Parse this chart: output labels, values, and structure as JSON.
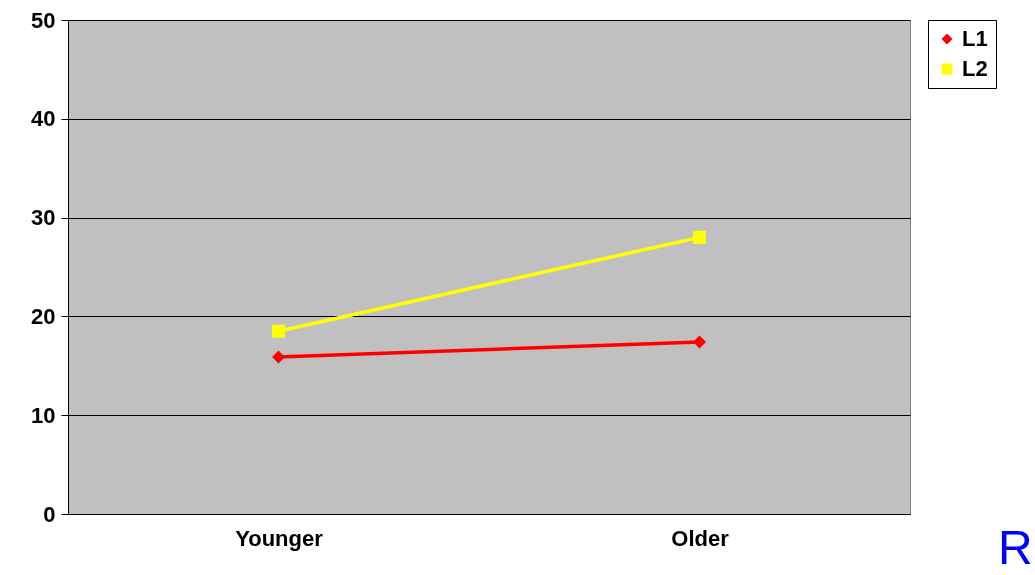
{
  "chart_data": {
    "type": "line",
    "categories": [
      "Younger",
      "Older"
    ],
    "series": [
      {
        "name": "L1",
        "color": "#ff0000",
        "marker": "diamond",
        "values": [
          15.9,
          17.4
        ]
      },
      {
        "name": "L2",
        "color": "#ffff00",
        "marker": "square",
        "values": [
          18.5,
          28.0
        ]
      }
    ],
    "ylim": [
      0,
      50
    ],
    "yticks": [
      0,
      10,
      20,
      30,
      40,
      50
    ],
    "grid": "y",
    "legend": "right",
    "line_style": "solid",
    "annotations": [
      "R"
    ]
  }
}
